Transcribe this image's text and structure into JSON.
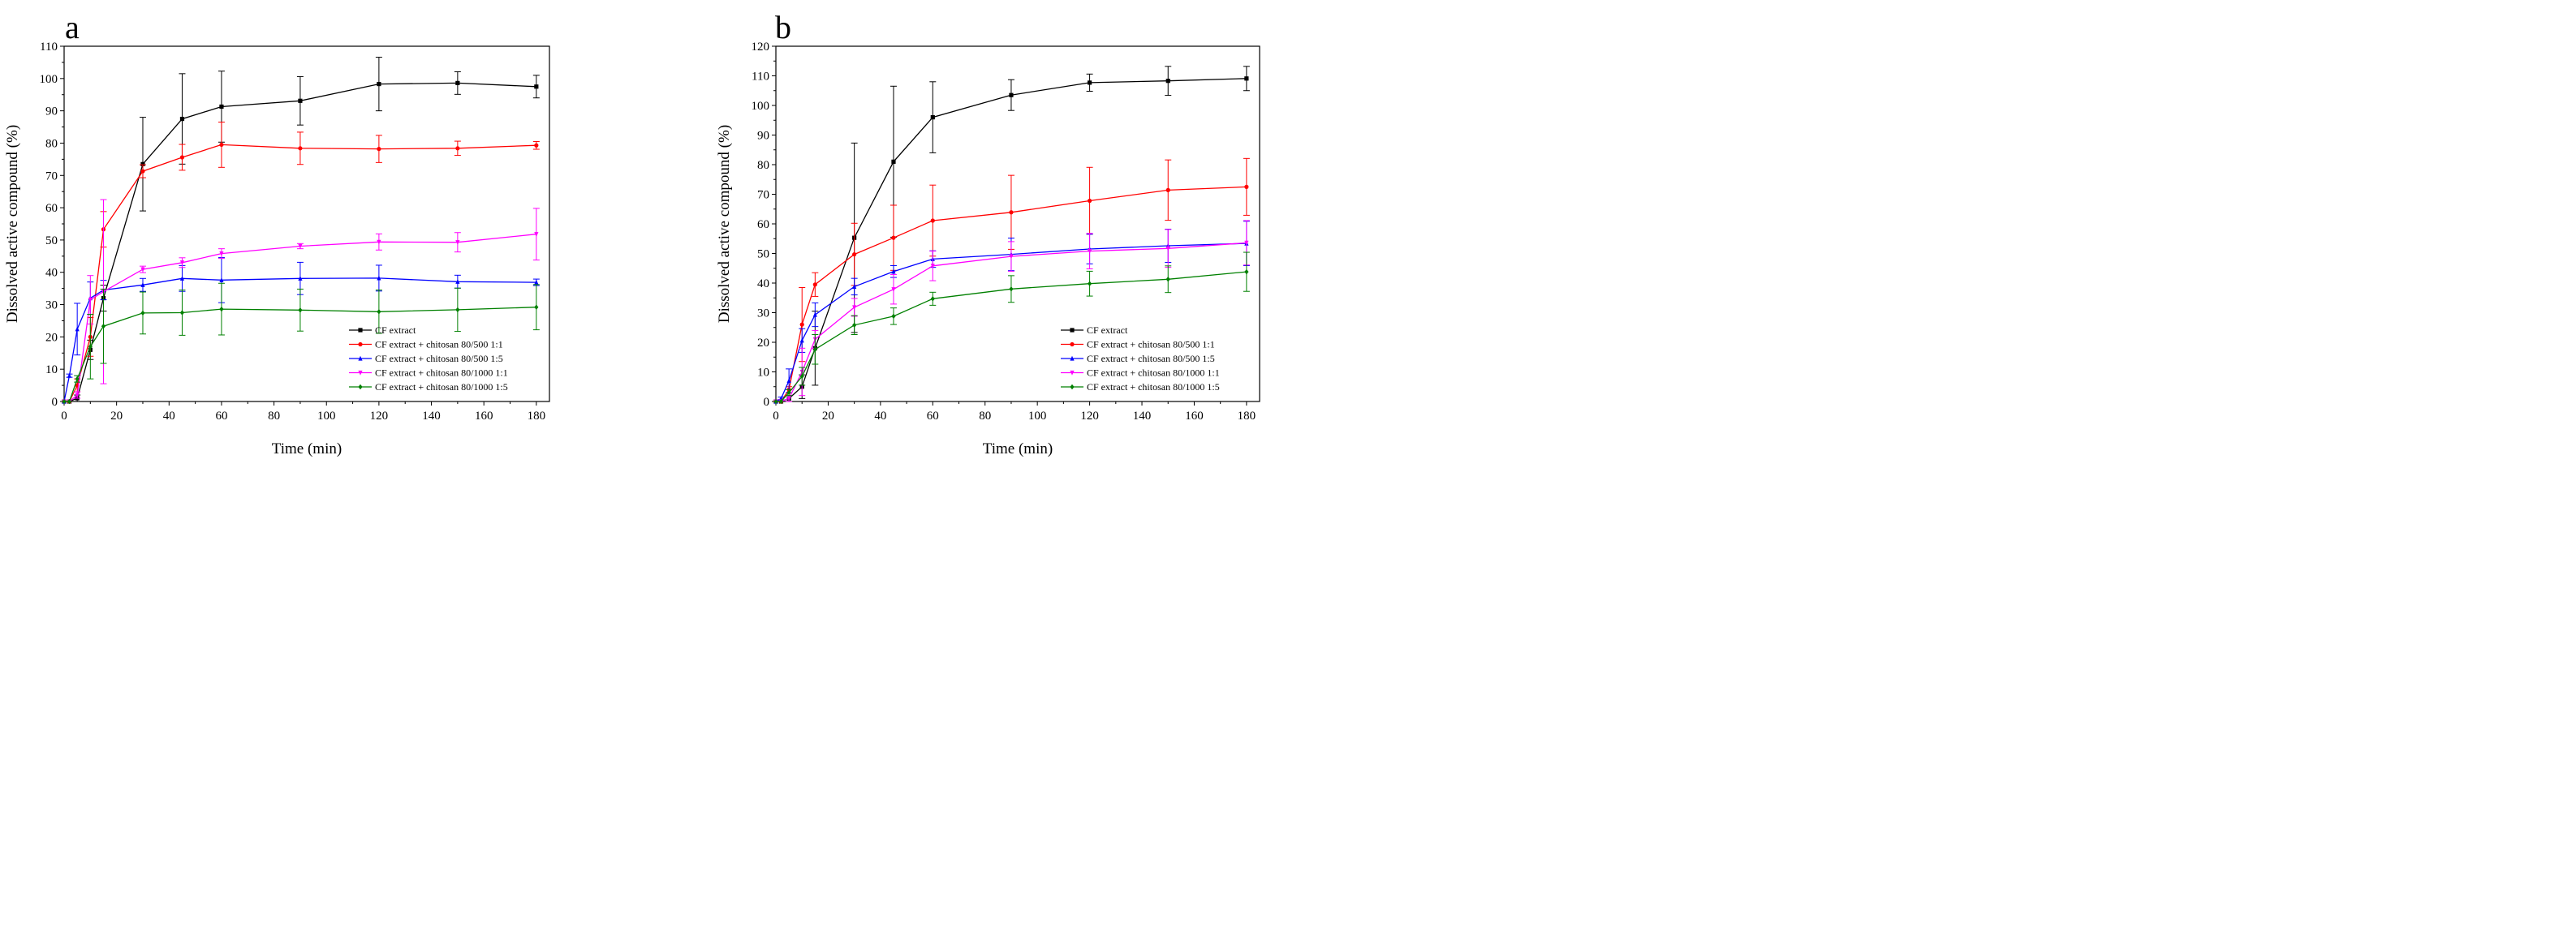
{
  "chart_data": [
    {
      "type": "line",
      "panel_label": "a",
      "xlabel": "Time (min)",
      "ylabel": "Dissolved active compound (%)",
      "xlim": [
        0,
        185
      ],
      "ylim": [
        0,
        110
      ],
      "xticks": [
        0,
        20,
        40,
        60,
        80,
        100,
        120,
        140,
        160,
        180
      ],
      "yticks": [
        0,
        10,
        20,
        30,
        40,
        50,
        60,
        70,
        80,
        90,
        100,
        110
      ],
      "legend_position": "bottom-right",
      "x": [
        0,
        2,
        5,
        10,
        15,
        30,
        45,
        60,
        90,
        120,
        150,
        180
      ],
      "series": [
        {
          "name": "CF extract",
          "color": "#000000",
          "marker": "square",
          "values": [
            0,
            0,
            1,
            16,
            32,
            73.5,
            87.5,
            91.3,
            93.1,
            98.3,
            98.6,
            97.5
          ],
          "errors": [
            0,
            0,
            1,
            3,
            4,
            14.5,
            14,
            11,
            7.5,
            8.3,
            3.5,
            3.5
          ]
        },
        {
          "name": "CF extract + chitosan 80/500 1:1",
          "color": "#ff0000",
          "marker": "circle",
          "values": [
            0,
            0,
            5,
            20,
            53.3,
            71.3,
            75.6,
            79.5,
            78.4,
            78.2,
            78.4,
            79.3
          ],
          "errors": [
            0,
            0,
            2,
            6,
            5.5,
            2,
            4,
            7,
            5,
            4.2,
            2.2,
            1.2
          ]
        },
        {
          "name": "CF extract + chitosan 80/500 1:5",
          "color": "#0000ff",
          "marker": "triangle-up",
          "values": [
            0,
            8,
            22.4,
            32,
            34.5,
            36.1,
            38.1,
            37.6,
            38.1,
            38.2,
            37.1,
            36.9
          ],
          "errors": [
            0,
            0.5,
            8,
            5,
            3,
            2,
            4,
            7,
            5,
            4,
            2,
            1
          ]
        },
        {
          "name": "CF extract + chitosan 80/1000 1:1",
          "color": "#ff00ff",
          "marker": "triangle-down",
          "values": [
            0,
            0,
            2,
            31.5,
            34,
            40.9,
            43,
            45.8,
            48.1,
            49.4,
            49.3,
            51.8
          ],
          "errors": [
            0,
            0,
            1,
            7.5,
            28.5,
            1,
            1.5,
            1.5,
            0.8,
            2.5,
            3,
            8
          ]
        },
        {
          "name": "CF extract + chitosan 80/1000 1:5",
          "color": "#008000",
          "marker": "diamond",
          "values": [
            0,
            0,
            7,
            17,
            23.3,
            27.4,
            27.5,
            28.6,
            28.3,
            27.8,
            28.4,
            29.2
          ],
          "errors": [
            0,
            0,
            1,
            10,
            11.5,
            6.5,
            7,
            8,
            6.5,
            6.7,
            6.7,
            7
          ]
        }
      ]
    },
    {
      "type": "line",
      "panel_label": "b",
      "xlabel": "Time (min)",
      "ylabel": "Dissolved active compound (%)",
      "xlim": [
        0,
        185
      ],
      "ylim": [
        0,
        120
      ],
      "xticks": [
        0,
        20,
        40,
        60,
        80,
        100,
        120,
        140,
        160,
        180
      ],
      "yticks": [
        0,
        10,
        20,
        30,
        40,
        50,
        60,
        70,
        80,
        90,
        100,
        110,
        120
      ],
      "legend_position": "bottom-right",
      "x": [
        0,
        2,
        5,
        10,
        15,
        30,
        45,
        60,
        90,
        120,
        150,
        180
      ],
      "series": [
        {
          "name": "CF extract",
          "color": "#000000",
          "marker": "square",
          "values": [
            0,
            0,
            1,
            5,
            18,
            55.3,
            81,
            96,
            103.5,
            107.7,
            108.3,
            109.1
          ],
          "errors": [
            0,
            0,
            1,
            4,
            12.5,
            32,
            25.5,
            12,
            5.2,
            2.9,
            4.9,
            4.1
          ]
        },
        {
          "name": "CF extract + chitosan 80/500 1:1",
          "color": "#ff0000",
          "marker": "circle",
          "values": [
            0,
            0,
            4,
            26,
            39.5,
            49.7,
            55.3,
            61.1,
            63.9,
            67.8,
            71.4,
            72.5
          ],
          "errors": [
            0,
            0,
            1,
            12.5,
            4,
            10.5,
            11,
            12,
            12.5,
            11.3,
            10.2,
            9.6
          ]
        },
        {
          "name": "CF extract + chitosan 80/500 1:5",
          "color": "#0000ff",
          "marker": "triangle-up",
          "values": [
            0,
            1,
            7,
            20.6,
            29.3,
            38.8,
            43.9,
            48.1,
            49.7,
            51.5,
            52.6,
            53.4
          ],
          "errors": [
            0,
            0.5,
            4,
            4,
            4,
            2.8,
            2,
            2.8,
            5.5,
            5,
            5.6,
            7.5
          ]
        },
        {
          "name": "CF extract + chitosan 80/1000 1:1",
          "color": "#ff00ff",
          "marker": "triangle-down",
          "values": [
            0,
            0,
            1,
            10,
            21,
            31.8,
            37.9,
            45.8,
            49,
            50.8,
            51.7,
            53.6
          ],
          "errors": [
            0,
            0,
            1,
            8,
            3,
            3,
            5,
            5,
            5,
            6,
            6.4,
            7.5
          ]
        },
        {
          "name": "CF extract + chitosan 80/1000 1:5",
          "color": "#008000",
          "marker": "diamond",
          "values": [
            0,
            0,
            3,
            8.5,
            17.6,
            25.8,
            28.8,
            34.7,
            38,
            39.8,
            41.3,
            43.8
          ],
          "errors": [
            0,
            0,
            1,
            3,
            5,
            3.2,
            2.8,
            2.2,
            4.5,
            4.2,
            4.5,
            6.6
          ]
        }
      ]
    }
  ]
}
